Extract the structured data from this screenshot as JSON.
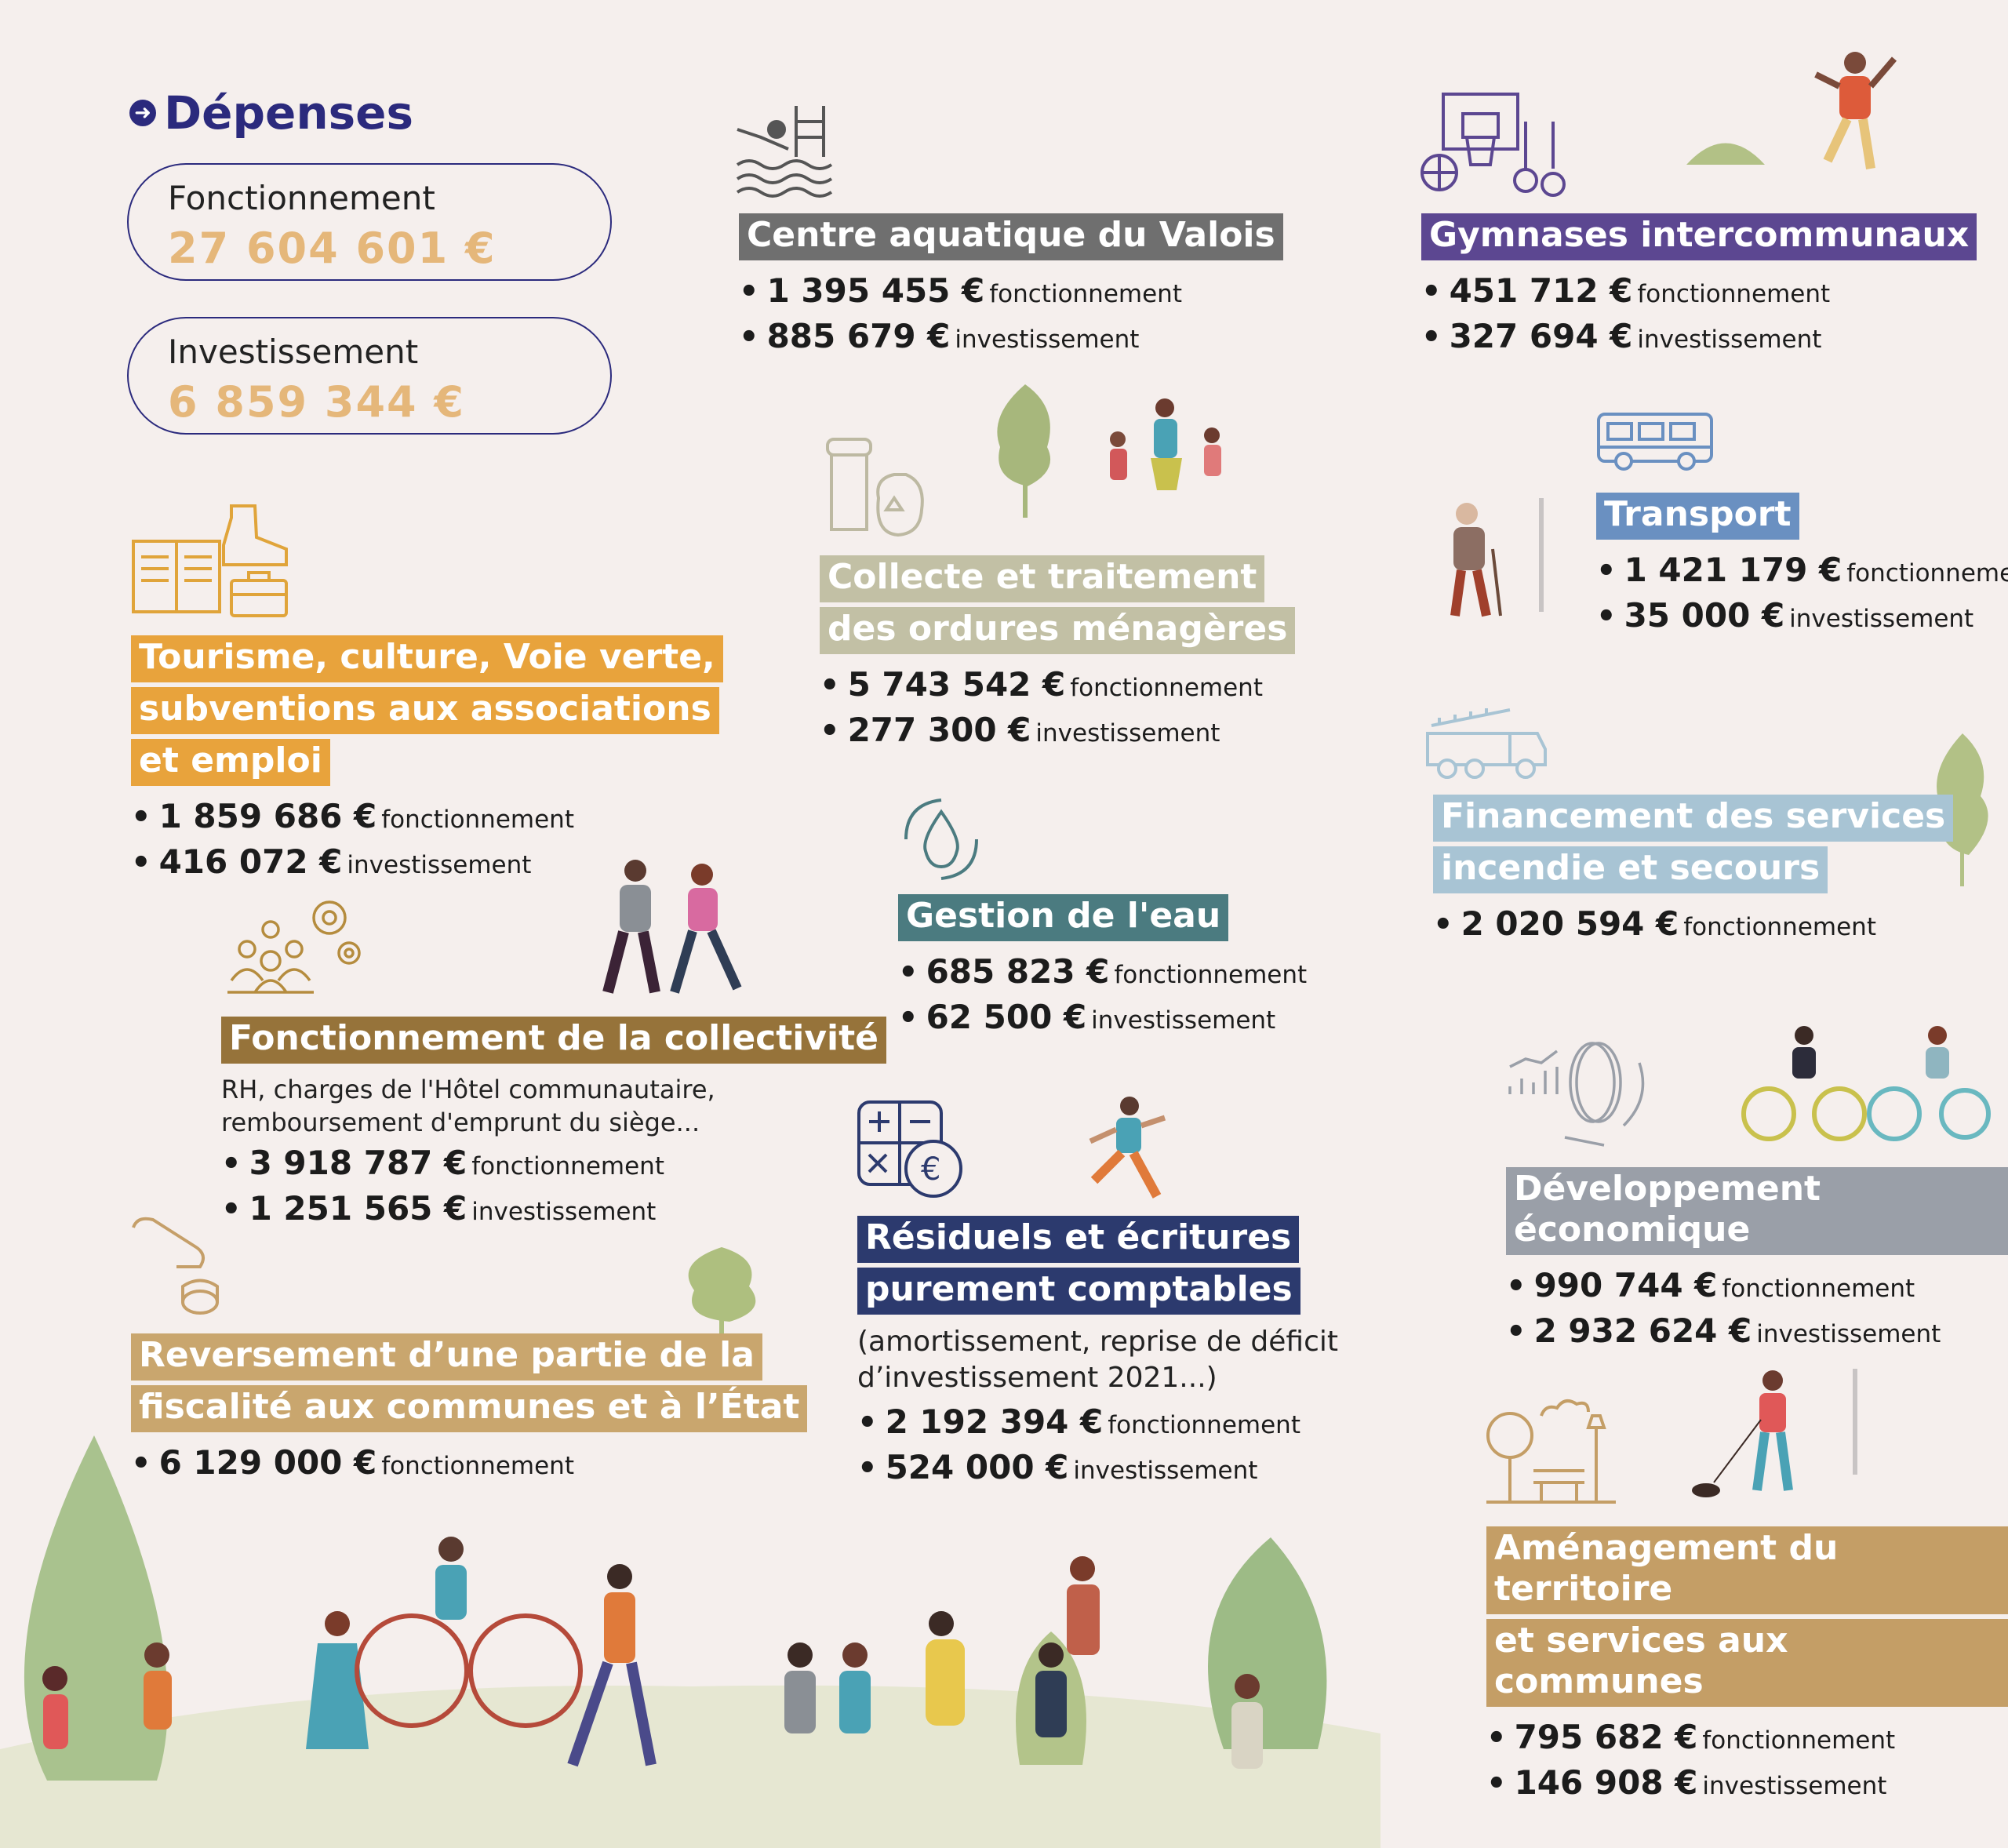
{
  "title": "Dépenses",
  "totals": {
    "fonctionnement": {
      "label": "Fonctionnement",
      "value": "27 604 601 €"
    },
    "investissement": {
      "label": "Investissement",
      "value": "6 859 344 €"
    }
  },
  "kinds": {
    "f": "fonctionnement",
    "i": "investissement"
  },
  "categories": {
    "tourisme": {
      "title_lines": [
        "Tourisme, culture, Voie verte,",
        "subventions aux associations",
        "et emploi"
      ],
      "fonctionnement": "1 859 686 €",
      "investissement": "416 072 €",
      "color": "#e8a33c"
    },
    "collectivite": {
      "title_lines": [
        "Fonctionnement de la collectivité"
      ],
      "note_lines": [
        "RH, charges de l'Hôtel communautaire,",
        "remboursement d'emprunt du siège..."
      ],
      "fonctionnement": "3 918 787 €",
      "investissement": "1 251 565 €",
      "color": "#96733a"
    },
    "reversement": {
      "title_lines": [
        "Reversement d’une partie de la",
        "fiscalité aux communes et à l’État"
      ],
      "fonctionnement": "6 129 000 €",
      "color": "#c9a66e"
    },
    "aquatique": {
      "title_lines": [
        "Centre aquatique du Valois"
      ],
      "fonctionnement": "1 395 455 €",
      "investissement": "885 679 €",
      "color": "#6f6f6f"
    },
    "collecte": {
      "title_lines": [
        "Collecte et traitement",
        "des ordures ménagères"
      ],
      "fonctionnement": "5 743 542 €",
      "investissement": "277 300 €",
      "color": "#c2c0a5"
    },
    "eau": {
      "title_lines": [
        "Gestion de l'eau"
      ],
      "fonctionnement": "685 823 €",
      "investissement": "62 500 €",
      "color": "#4b7b80"
    },
    "residuels": {
      "title_lines": [
        "Résiduels et écritures",
        "purement comptables"
      ],
      "note_lines": [
        "(amortissement, reprise de déficit",
        "d’investissement 2021...)"
      ],
      "fonctionnement": "2 192 394 €",
      "investissement": "524 000 €",
      "color": "#2c3a6e"
    },
    "gymnases": {
      "title_lines": [
        "Gymnases intercommunaux"
      ],
      "fonctionnement": "451 712 €",
      "investissement": "327 694 €",
      "color": "#5c4791"
    },
    "transport": {
      "title_lines": [
        "Transport"
      ],
      "fonctionnement": "1 421 179 €",
      "investissement": "35 000 €",
      "color": "#6a90c1"
    },
    "incendie": {
      "title_lines": [
        "Financement des services",
        "incendie et secours"
      ],
      "fonctionnement": "2 020 594 €",
      "color": "#a8c4d4"
    },
    "developpement": {
      "title_lines": [
        "Développement économique"
      ],
      "fonctionnement": "990 744 €",
      "investissement": "2 932 624 €",
      "color": "#9a9fa8"
    },
    "amenagement": {
      "title_lines": [
        "Aménagement du territoire",
        "et services aux communes"
      ],
      "fonctionnement": "795 682 €",
      "investissement": "146 908 €",
      "color": "#c49e66"
    }
  },
  "icons": {
    "tourisme": "book-boot-briefcase-icon",
    "collectivite": "people-gears-icon",
    "reversement": "hand-coin-icon",
    "aquatique": "swimmer-pool-icon",
    "collecte": "trash-bin-recycle-icon",
    "eau": "water-drop-cycle-icon",
    "residuels": "calculator-euro-icon",
    "gymnases": "basketball-rings-icon",
    "transport": "bus-icon",
    "incendie": "fire-truck-icon",
    "developpement": "chart-coin-icon",
    "amenagement": "park-bench-icon"
  }
}
